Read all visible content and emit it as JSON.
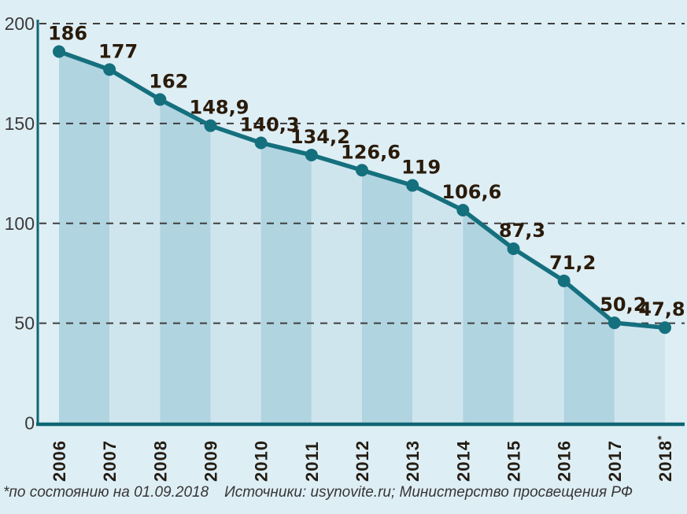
{
  "page": {
    "background_color": "#deeef5"
  },
  "chart_data": {
    "type": "area",
    "categories": [
      "2006",
      "2007",
      "2008",
      "2009",
      "2010",
      "2011",
      "2012",
      "2013",
      "2014",
      "2015",
      "2016",
      "2017",
      "2018*"
    ],
    "values": [
      186,
      177,
      162,
      148.9,
      140.3,
      134.2,
      126.6,
      119,
      106.6,
      87.3,
      71.2,
      50.2,
      47.8
    ],
    "value_labels": [
      "186",
      "177",
      "162",
      "148,9",
      "140,3",
      "134,2",
      "126,6",
      "119",
      "106,6",
      "87,3",
      "71,2",
      "50,2",
      "47,8"
    ],
    "ylim": [
      0,
      200
    ],
    "yticks": [
      0,
      50,
      100,
      150,
      200
    ],
    "grid": "horizontal-dashed",
    "legend": "none",
    "marker": "circle",
    "fill_style": "alternating-vertical-stripes",
    "colors": {
      "line": "#15707e",
      "marker": "#15707e",
      "axis": "#0f6573",
      "stripe_dark": "#b0d4e0",
      "stripe_light": "#cfe5ee",
      "grid": "#3e3e3e",
      "value_label": "#2a1b0a",
      "x_tick_label": "#241d13",
      "y_tick_label": "#3b3b3b",
      "background": "#deeef5"
    }
  },
  "footer": {
    "asterisk_note": "*по состоянию на 01.09.2018",
    "sources": "Источники: usynovite.ru; Министерство просвещения РФ"
  }
}
